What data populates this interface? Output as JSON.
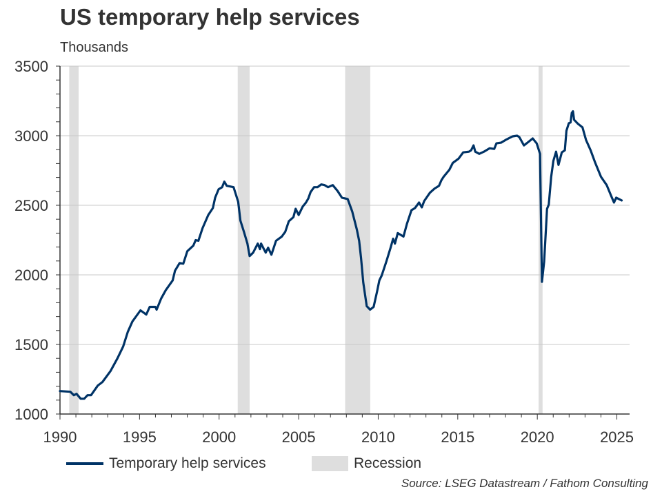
{
  "title": "US temporary help services",
  "subtitle": "Thousands",
  "source": "Source: LSEG Datastream / Fathom Consulting",
  "legend": {
    "series_label": "Temporary help services",
    "recession_label": "Recession"
  },
  "colors": {
    "series": "#003366",
    "recession": "#dedede",
    "grid": "#c8c8c8",
    "axis": "#333333"
  },
  "chart_data": {
    "type": "line",
    "title": "US temporary help services",
    "ylabel": "Thousands",
    "xlim": [
      1990,
      2025.8
    ],
    "ylim": [
      1000,
      3500
    ],
    "xticks": [
      1990,
      1995,
      2000,
      2005,
      2010,
      2015,
      2020,
      2025
    ],
    "yticks": [
      1000,
      1500,
      2000,
      2500,
      3000,
      3500
    ],
    "grid": "horizontal",
    "legend_position": "bottom",
    "recessions": [
      [
        1990.58,
        1991.17
      ],
      [
        2001.17,
        2001.92
      ],
      [
        2007.92,
        2009.5
      ],
      [
        2020.08,
        2020.33
      ]
    ],
    "series": [
      {
        "name": "Temporary help services",
        "x": [
          1990.0,
          1990.65,
          1990.87,
          1991.04,
          1991.3,
          1991.52,
          1991.73,
          1991.95,
          1992.38,
          1992.67,
          1993.18,
          1993.61,
          1993.97,
          1994.26,
          1994.55,
          1995.06,
          1995.42,
          1995.64,
          1996.0,
          1996.07,
          1996.36,
          1996.65,
          1997.08,
          1997.23,
          1997.52,
          1997.75,
          1998.0,
          1998.38,
          1998.53,
          1998.7,
          1998.96,
          1999.32,
          1999.61,
          1999.75,
          1999.97,
          2000.19,
          2000.33,
          2000.48,
          2000.91,
          2001.2,
          2001.34,
          2001.56,
          2001.78,
          2001.92,
          2002.14,
          2002.43,
          2002.57,
          2002.64,
          2002.93,
          2003.08,
          2003.29,
          2003.58,
          2003.94,
          2004.16,
          2004.38,
          2004.67,
          2004.81,
          2005.0,
          2005.25,
          2005.46,
          2005.61,
          2005.75,
          2005.97,
          2006.19,
          2006.42,
          2006.63,
          2006.85,
          2007.14,
          2007.43,
          2007.72,
          2008.08,
          2008.37,
          2008.66,
          2008.8,
          2008.92,
          2009.06,
          2009.28,
          2009.49,
          2009.71,
          2009.93,
          2010.07,
          2010.22,
          2010.51,
          2010.79,
          2010.94,
          2011.05,
          2011.23,
          2011.59,
          2011.8,
          2012.09,
          2012.31,
          2012.57,
          2012.74,
          2012.89,
          2013.25,
          2013.54,
          2013.82,
          2013.97,
          2014.11,
          2014.47,
          2014.69,
          2015.05,
          2015.34,
          2015.7,
          2015.84,
          2015.99,
          2016.1,
          2016.35,
          2016.64,
          2017.0,
          2017.29,
          2017.43,
          2017.72,
          2018.01,
          2018.44,
          2018.73,
          2018.87,
          2019.16,
          2019.38,
          2019.71,
          2019.96,
          2020.17,
          2020.29,
          2020.43,
          2020.61,
          2020.72,
          2020.87,
          2021.01,
          2021.18,
          2021.33,
          2021.54,
          2021.73,
          2021.83,
          2021.98,
          2022.09,
          2022.17,
          2022.24,
          2022.31,
          2022.56,
          2022.84,
          2023.06,
          2023.35,
          2023.64,
          2024.0,
          2024.36,
          2024.65,
          2024.82,
          2024.96,
          2025.3
        ],
        "y": [
          1165,
          1160,
          1135,
          1145,
          1110,
          1110,
          1135,
          1135,
          1205,
          1230,
          1310,
          1400,
          1485,
          1590,
          1665,
          1745,
          1715,
          1770,
          1770,
          1750,
          1830,
          1890,
          1960,
          2030,
          2085,
          2080,
          2170,
          2210,
          2250,
          2245,
          2335,
          2430,
          2480,
          2555,
          2615,
          2630,
          2670,
          2640,
          2630,
          2525,
          2390,
          2310,
          2225,
          2135,
          2160,
          2225,
          2185,
          2225,
          2160,
          2195,
          2145,
          2245,
          2275,
          2310,
          2385,
          2415,
          2475,
          2430,
          2490,
          2520,
          2550,
          2595,
          2630,
          2630,
          2650,
          2645,
          2630,
          2645,
          2605,
          2555,
          2545,
          2455,
          2325,
          2245,
          2125,
          1945,
          1775,
          1750,
          1770,
          1880,
          1960,
          1995,
          2095,
          2200,
          2260,
          2225,
          2300,
          2275,
          2365,
          2465,
          2480,
          2520,
          2485,
          2530,
          2590,
          2620,
          2640,
          2680,
          2705,
          2755,
          2805,
          2835,
          2880,
          2885,
          2895,
          2930,
          2885,
          2870,
          2885,
          2910,
          2905,
          2945,
          2950,
          2970,
          2995,
          3000,
          2990,
          2930,
          2950,
          2980,
          2945,
          2870,
          1950,
          2095,
          2475,
          2505,
          2705,
          2820,
          2885,
          2790,
          2880,
          2895,
          3035,
          3090,
          3095,
          3165,
          3175,
          3115,
          3085,
          3060,
          2970,
          2895,
          2805,
          2705,
          2645,
          2565,
          2520,
          2555,
          2535
        ]
      }
    ]
  }
}
